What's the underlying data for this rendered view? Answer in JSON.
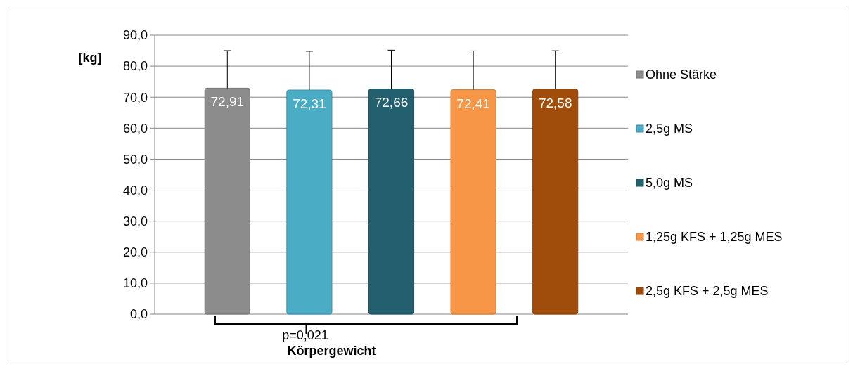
{
  "chart_data": {
    "type": "bar",
    "categories": [
      "Körpergewicht"
    ],
    "ylabel": "[kg]",
    "series": [
      {
        "name": "Ohne Stärke",
        "color": "#8c8c8c",
        "values": [
          72.91
        ],
        "errors": [
          12.1
        ],
        "value_labels": [
          "72,91"
        ]
      },
      {
        "name": "2,5g MS",
        "color": "#4bacc6",
        "values": [
          72.31
        ],
        "errors": [
          12.5
        ],
        "value_labels": [
          "72,31"
        ]
      },
      {
        "name": "5,0g MS",
        "color": "#23606f",
        "values": [
          72.66
        ],
        "errors": [
          12.5
        ],
        "value_labels": [
          "72,66"
        ]
      },
      {
        "name": "1,25g KFS + 1,25g MES",
        "color": "#f79646",
        "values": [
          72.41
        ],
        "errors": [
          12.5
        ],
        "value_labels": [
          "72,41"
        ]
      },
      {
        "name": "2,5g KFS + 2,5g MES",
        "color": "#a04d0c",
        "values": [
          72.58
        ],
        "errors": [
          12.4
        ],
        "value_labels": [
          "72,58"
        ]
      }
    ],
    "ylim": [
      0,
      90
    ],
    "yticks": [
      {
        "value": 0,
        "label": "0,0"
      },
      {
        "value": 10,
        "label": "10,0"
      },
      {
        "value": 20,
        "label": "20,0"
      },
      {
        "value": 30,
        "label": "30,0"
      },
      {
        "value": 40,
        "label": "40,0"
      },
      {
        "value": 50,
        "label": "50,0"
      },
      {
        "value": 60,
        "label": "60,0"
      },
      {
        "value": 70,
        "label": "70,0"
      },
      {
        "value": 80,
        "label": "80,0"
      },
      {
        "value": 90,
        "label": "90,0"
      }
    ],
    "grid": "y",
    "legend": "right",
    "annotations": [
      "p=0,021"
    ]
  }
}
